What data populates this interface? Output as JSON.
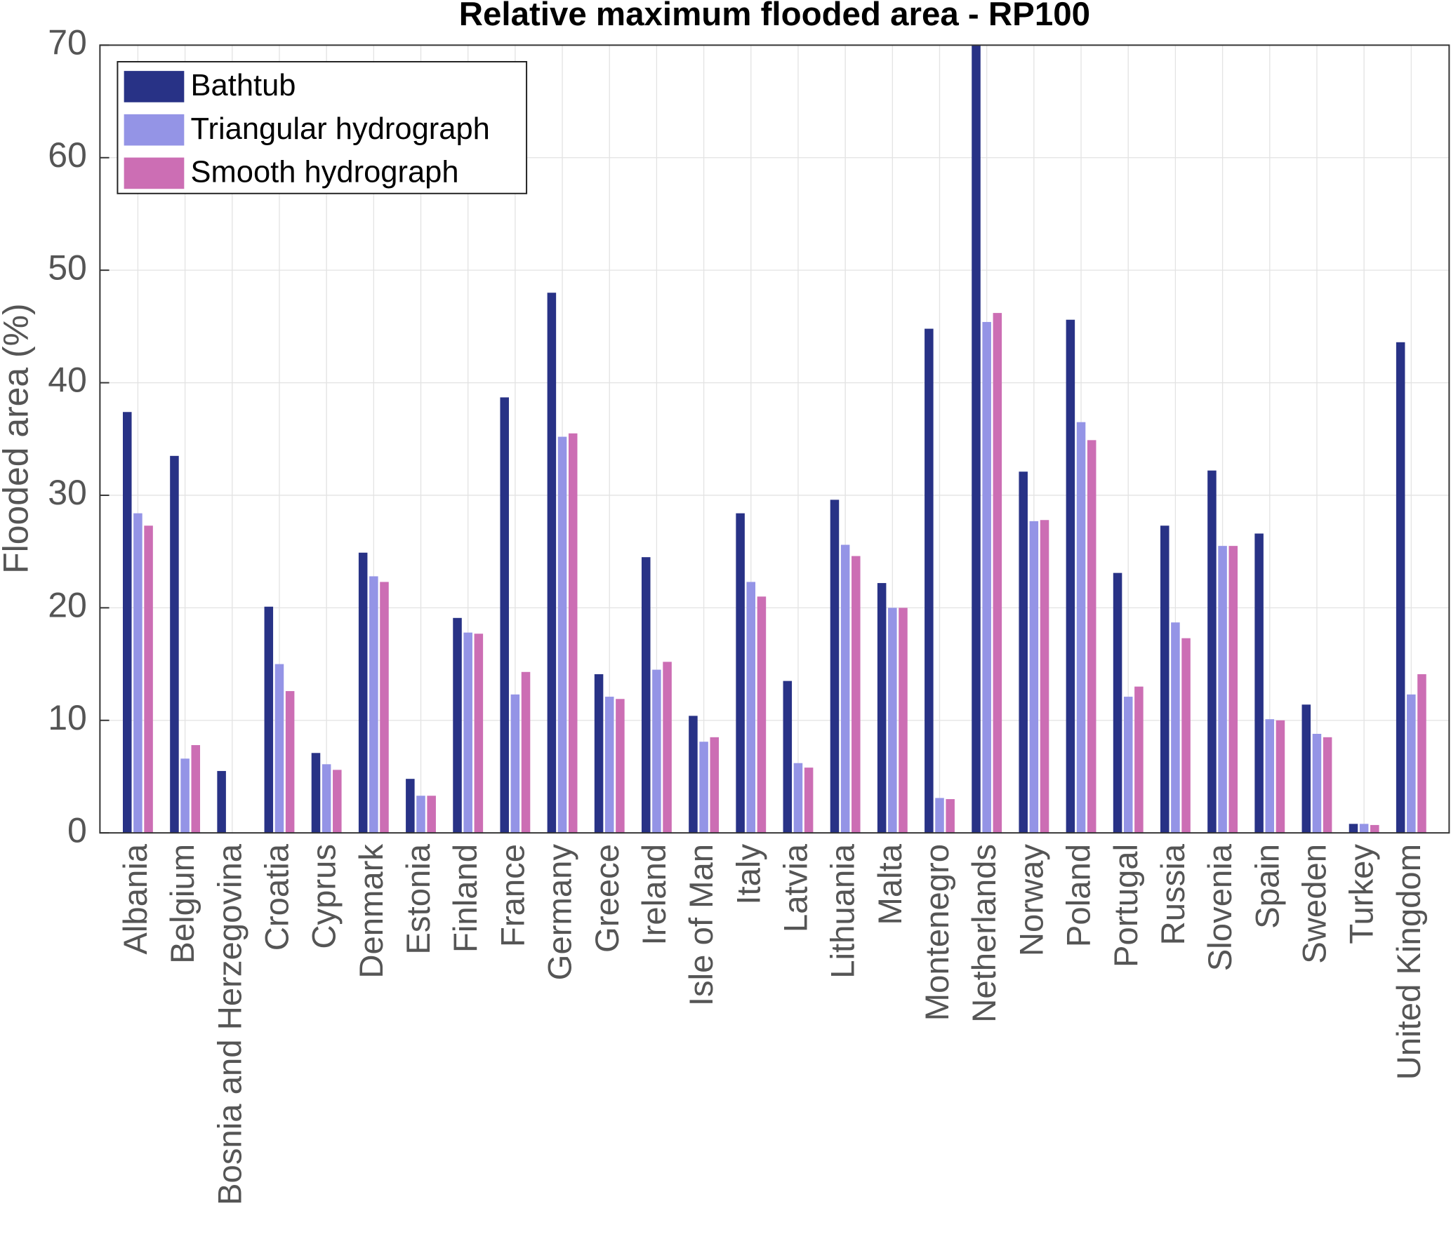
{
  "chart_data": {
    "type": "bar",
    "title": "Relative maximum flooded area - RP100",
    "y_label": "Flooded area (%)",
    "categories": [
      "Albania",
      "Belgium",
      "Bosnia and Herzegovina",
      "Croatia",
      "Cyprus",
      "Denmark",
      "Estonia",
      "Finland",
      "France",
      "Germany",
      "Greece",
      "Ireland",
      "Isle of Man",
      "Italy",
      "Latvia",
      "Lithuania",
      "Malta",
      "Montenegro",
      "Netherlands",
      "Norway",
      "Poland",
      "Portugal",
      "Russia",
      "Slovenia",
      "Spain",
      "Sweden",
      "Turkey",
      "United Kingdom"
    ],
    "series": [
      {
        "name": "Bathtub",
        "color": "#283286",
        "values": [
          37.4,
          33.5,
          5.5,
          20.1,
          7.1,
          24.9,
          4.8,
          19.1,
          38.7,
          48.0,
          14.1,
          24.5,
          10.4,
          28.4,
          13.5,
          29.6,
          22.2,
          44.8,
          70,
          32.1,
          45.6,
          23.1,
          27.3,
          32.2,
          26.6,
          11.4,
          0.8,
          43.6
        ]
      },
      {
        "name": "Triangular hydrograph",
        "color": "#9494e6",
        "values": [
          28.4,
          6.6,
          0,
          15.0,
          6.1,
          22.8,
          3.3,
          17.8,
          12.3,
          35.2,
          12.1,
          14.5,
          8.1,
          22.3,
          6.2,
          25.6,
          20.0,
          3.1,
          45.4,
          27.7,
          36.5,
          12.1,
          18.7,
          25.5,
          10.1,
          8.8,
          0.8,
          12.3
        ]
      },
      {
        "name": "Smooth hydrograph",
        "color": "#cc6eb4",
        "values": [
          27.3,
          7.8,
          0,
          12.6,
          5.6,
          22.3,
          3.3,
          17.7,
          14.3,
          35.5,
          11.9,
          15.2,
          8.5,
          21.0,
          5.8,
          24.6,
          20.0,
          3.0,
          46.2,
          27.8,
          34.9,
          13.0,
          17.3,
          25.5,
          10.0,
          8.5,
          0.7,
          14.1
        ]
      }
    ],
    "ylim": [
      0,
      70
    ],
    "yticks": [
      0,
      10,
      20,
      30,
      40,
      50,
      60,
      70
    ],
    "grid": true,
    "legend": "top-left"
  }
}
